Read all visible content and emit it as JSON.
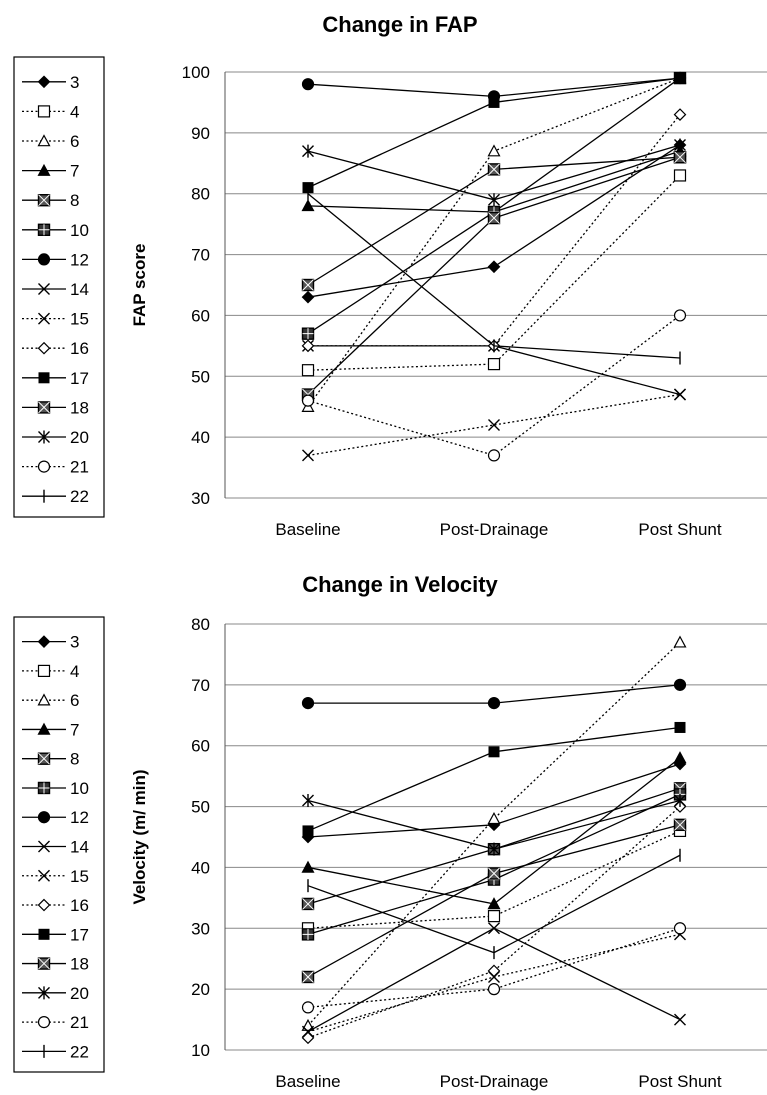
{
  "chart_data": [
    {
      "type": "line",
      "title": "Change in FAP",
      "ylabel": "FAP score",
      "xlabel": "",
      "categories": [
        "Baseline",
        "Post-Drainage",
        "Post Shunt"
      ],
      "ylim": [
        30,
        100
      ],
      "yticks": [
        30,
        40,
        50,
        60,
        70,
        80,
        90,
        100
      ],
      "grid": true,
      "legend_position": "left",
      "series": [
        {
          "name": "3",
          "line": "solid",
          "marker": "diamond",
          "values": [
            63,
            68,
            88
          ]
        },
        {
          "name": "4",
          "line": "dotted",
          "marker": "square-open",
          "values": [
            51,
            52,
            83
          ]
        },
        {
          "name": "6",
          "line": "dotted",
          "marker": "triangle-open",
          "values": [
            45,
            87,
            99
          ]
        },
        {
          "name": "7",
          "line": "solid",
          "marker": "triangle",
          "values": [
            78,
            77,
            87
          ]
        },
        {
          "name": "8",
          "line": "solid",
          "marker": "square-x",
          "values": [
            65,
            84,
            86
          ]
        },
        {
          "name": "10",
          "line": "solid",
          "marker": "square-plus",
          "values": [
            57,
            77,
            99
          ]
        },
        {
          "name": "12",
          "line": "solid",
          "marker": "circle",
          "values": [
            98,
            96,
            99
          ]
        },
        {
          "name": "14",
          "line": "solid",
          "marker": "x",
          "values": [
            55,
            55,
            47
          ]
        },
        {
          "name": "15",
          "line": "dotted",
          "marker": "x",
          "values": [
            37,
            42,
            47
          ]
        },
        {
          "name": "16",
          "line": "dotted",
          "marker": "diamond-open",
          "values": [
            55,
            55,
            93
          ]
        },
        {
          "name": "17",
          "line": "solid",
          "marker": "square",
          "values": [
            81,
            95,
            99
          ]
        },
        {
          "name": "18",
          "line": "solid",
          "marker": "square-x",
          "values": [
            47,
            76,
            86
          ]
        },
        {
          "name": "20",
          "line": "solid",
          "marker": "star",
          "values": [
            87,
            79,
            88
          ]
        },
        {
          "name": "21",
          "line": "dotted",
          "marker": "circle-open",
          "values": [
            46,
            37,
            60
          ]
        },
        {
          "name": "22",
          "line": "solid",
          "marker": "plus",
          "values": [
            80,
            55,
            53
          ]
        }
      ]
    },
    {
      "type": "line",
      "title": "Change in Velocity",
      "ylabel": "Velocity (m/ min)",
      "xlabel": "",
      "categories": [
        "Baseline",
        "Post-Drainage",
        "Post Shunt"
      ],
      "ylim": [
        10,
        80
      ],
      "yticks": [
        10,
        20,
        30,
        40,
        50,
        60,
        70,
        80
      ],
      "grid": true,
      "legend_position": "left",
      "series": [
        {
          "name": "3",
          "line": "solid",
          "marker": "diamond",
          "values": [
            45,
            47,
            57
          ]
        },
        {
          "name": "4",
          "line": "dotted",
          "marker": "square-open",
          "values": [
            30,
            32,
            46
          ]
        },
        {
          "name": "6",
          "line": "dotted",
          "marker": "triangle-open",
          "values": [
            14,
            48,
            77
          ]
        },
        {
          "name": "7",
          "line": "solid",
          "marker": "triangle",
          "values": [
            40,
            34,
            58
          ]
        },
        {
          "name": "8",
          "line": "solid",
          "marker": "square-x",
          "values": [
            34,
            43,
            53
          ]
        },
        {
          "name": "10",
          "line": "solid",
          "marker": "square-plus",
          "values": [
            29,
            38,
            52
          ]
        },
        {
          "name": "12",
          "line": "solid",
          "marker": "circle",
          "values": [
            67,
            67,
            70
          ]
        },
        {
          "name": "14",
          "line": "solid",
          "marker": "x",
          "values": [
            13,
            30,
            15
          ]
        },
        {
          "name": "15",
          "line": "dotted",
          "marker": "x",
          "values": [
            13,
            22,
            29
          ]
        },
        {
          "name": "16",
          "line": "dotted",
          "marker": "diamond-open",
          "values": [
            12,
            23,
            50
          ]
        },
        {
          "name": "17",
          "line": "solid",
          "marker": "square",
          "values": [
            46,
            59,
            63
          ]
        },
        {
          "name": "18",
          "line": "solid",
          "marker": "square-x",
          "values": [
            22,
            39,
            47
          ]
        },
        {
          "name": "20",
          "line": "solid",
          "marker": "star",
          "values": [
            51,
            43,
            51
          ]
        },
        {
          "name": "21",
          "line": "dotted",
          "marker": "circle-open",
          "values": [
            17,
            20,
            30
          ]
        },
        {
          "name": "22",
          "line": "solid",
          "marker": "plus",
          "values": [
            37,
            26,
            42
          ]
        }
      ]
    }
  ]
}
